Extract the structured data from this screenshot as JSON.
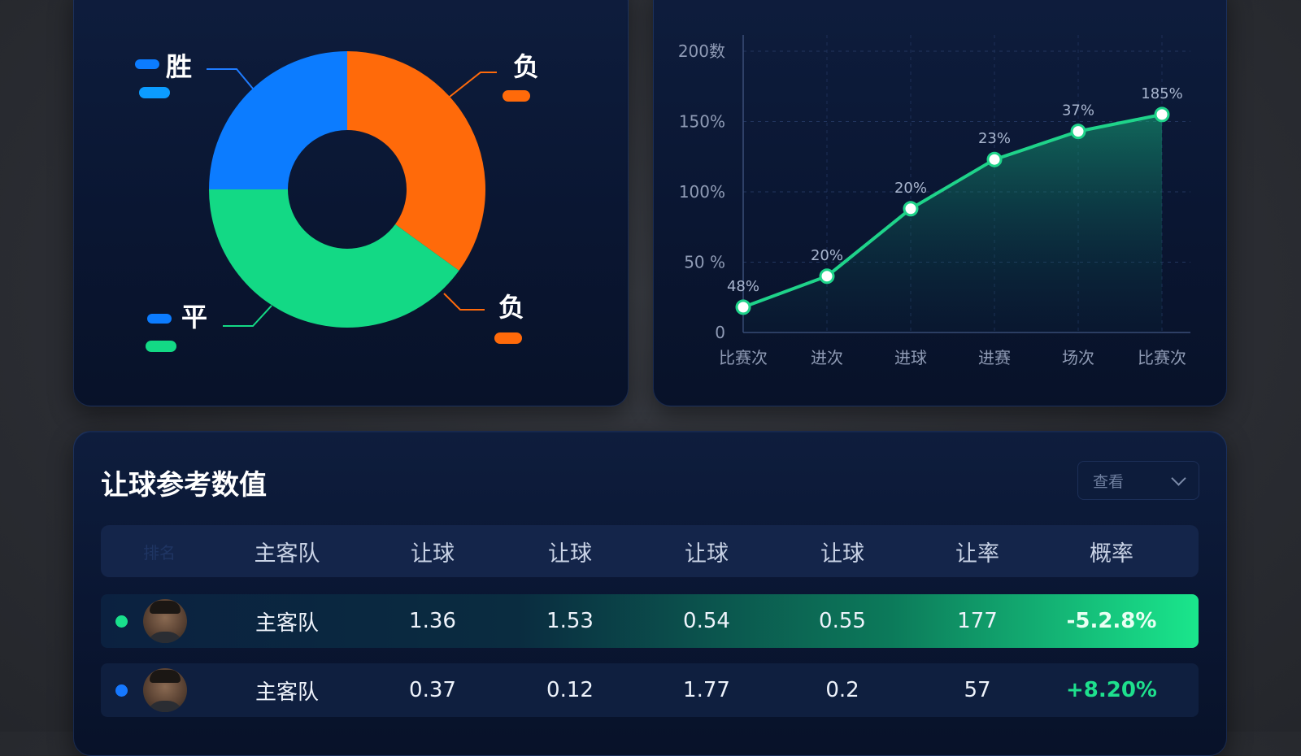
{
  "colors": {
    "blue": "#0c7cff",
    "orange": "#ff6a0a",
    "green": "#13d985",
    "teal_line": "#1fd38a",
    "positive": "#1ee08d"
  },
  "donut": {
    "legend": {
      "win": "胜",
      "lose_top": "负",
      "draw": "平",
      "lose_bottom": "负"
    },
    "segments": [
      {
        "name": "胜",
        "fraction": 0.25,
        "color": "#0c7cff"
      },
      {
        "name": "负",
        "fraction": 0.35,
        "color": "#ff6a0a"
      },
      {
        "name": "平",
        "fraction": 0.4,
        "color": "#13d985"
      }
    ]
  },
  "chart_data": {
    "type": "area",
    "categories": [
      "比赛次",
      "进次",
      "进球",
      "进赛",
      "场次",
      "比赛次"
    ],
    "values": [
      18,
      40,
      88,
      123,
      143,
      155
    ],
    "point_labels": [
      "48%",
      "20%",
      "20%",
      "23%",
      "37%",
      "185%"
    ],
    "y_ticks": [
      "0",
      "50 %",
      "100%",
      "150%",
      "200数"
    ],
    "y_tick_values": [
      0,
      50,
      100,
      150,
      200
    ],
    "ylim": [
      0,
      200
    ],
    "grid": true
  },
  "table": {
    "title": "让球参考数值",
    "dropdown_label": "查看",
    "headers": [
      "排名",
      "主客队",
      "让球",
      "让球",
      "让球",
      "让球",
      "让率",
      "概率"
    ],
    "rows": [
      {
        "dot_color": "#19e08c",
        "team": "主客队",
        "v1": "1.36",
        "v2": "1.53",
        "v3": "0.54",
        "v4": "0.55",
        "v5": "177",
        "pct": "-5.2.8%",
        "highlight": true
      },
      {
        "dot_color": "#1678ff",
        "team": "主客队",
        "v1": "0.37",
        "v2": "0.12",
        "v3": "1.77",
        "v4": "0.2",
        "v5": "57",
        "pct": "+8.20%",
        "highlight": false
      }
    ]
  }
}
